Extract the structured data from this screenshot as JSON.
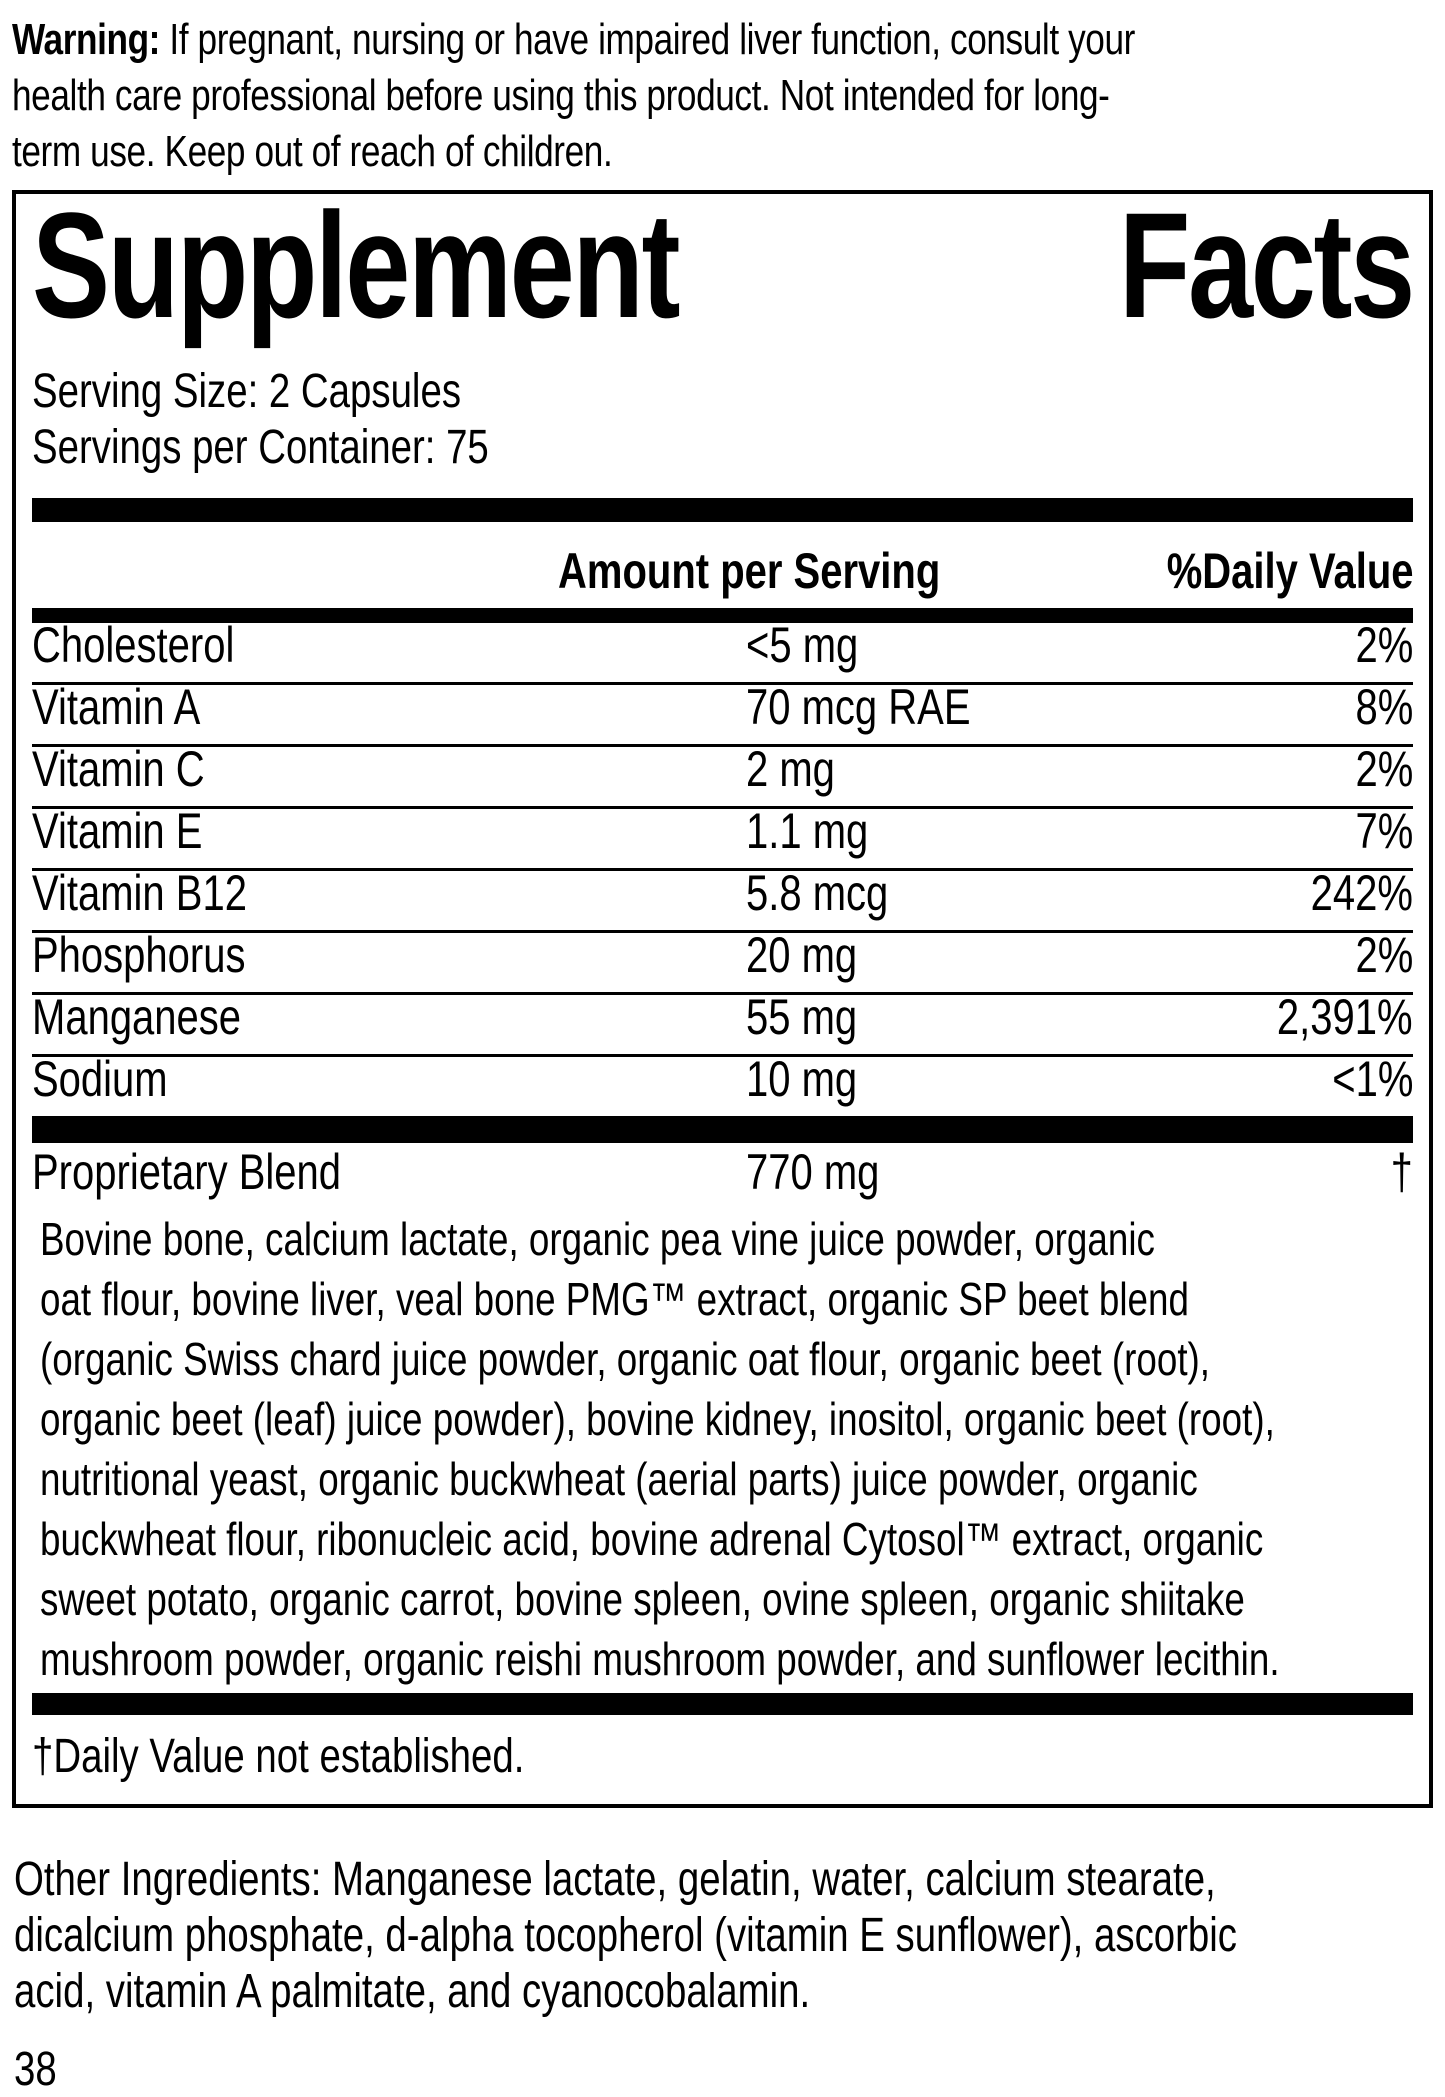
{
  "colors": {
    "ink": "#000000",
    "paper": "#ffffff"
  },
  "warning": {
    "label": "Warning:",
    "lines": [
      "If pregnant, nursing or have impaired liver function, consult your",
      "health care professional before using this product. Not intended for long-",
      "term use. Keep out of reach of children."
    ]
  },
  "panel": {
    "title_left": "Supplement",
    "title_right": "Facts",
    "serving_size": "Serving Size: 2 Capsules",
    "servings_per_container": "Servings per Container: 75",
    "columns": {
      "amount": "Amount per Serving",
      "daily_value": "%Daily Value"
    },
    "rows": [
      {
        "name": "Cholesterol",
        "amount": "<5 mg",
        "dv": "2%"
      },
      {
        "name": "Vitamin A",
        "amount": "70 mcg RAE",
        "dv": "8%"
      },
      {
        "name": "Vitamin C",
        "amount": "2 mg",
        "dv": "2%"
      },
      {
        "name": "Vitamin E",
        "amount": "1.1 mg",
        "dv": "7%"
      },
      {
        "name": "Vitamin B12",
        "amount": "5.8 mcg",
        "dv": "242%"
      },
      {
        "name": "Phosphorus",
        "amount": "20 mg",
        "dv": "2%"
      },
      {
        "name": "Manganese",
        "amount": "55 mg",
        "dv": "2,391%"
      },
      {
        "name": "Sodium",
        "amount": "10 mg",
        "dv": "<1%"
      }
    ],
    "proprietary": {
      "name": "Proprietary Blend",
      "amount": "770 mg",
      "dv": "†"
    },
    "blend_lines": [
      "Bovine bone, calcium lactate, organic pea vine juice powder, organic",
      "oat flour, bovine liver, veal bone PMG™ extract, organic SP beet blend",
      "(organic Swiss chard juice powder, organic oat flour, organic beet (root),",
      "organic beet (leaf) juice powder), bovine kidney, inositol, organic beet (root),",
      "nutritional yeast, organic buckwheat (aerial parts) juice powder, organic",
      "buckwheat flour, ribonucleic acid, bovine adrenal Cytosol™ extract, organic",
      "sweet potato, organic carrot, bovine spleen, ovine spleen, organic shiitake",
      "mushroom powder, organic reishi mushroom powder, and sunflower lecithin."
    ],
    "footnote": "†Daily Value not established."
  },
  "other_ingredients_lines": [
    "Other Ingredients: Manganese lactate, gelatin, water, calcium stearate,",
    "dicalcium phosphate, d-alpha tocopherol (vitamin E sunflower), ascorbic",
    "acid, vitamin A palmitate, and cyanocobalamin."
  ],
  "page_number": "38"
}
